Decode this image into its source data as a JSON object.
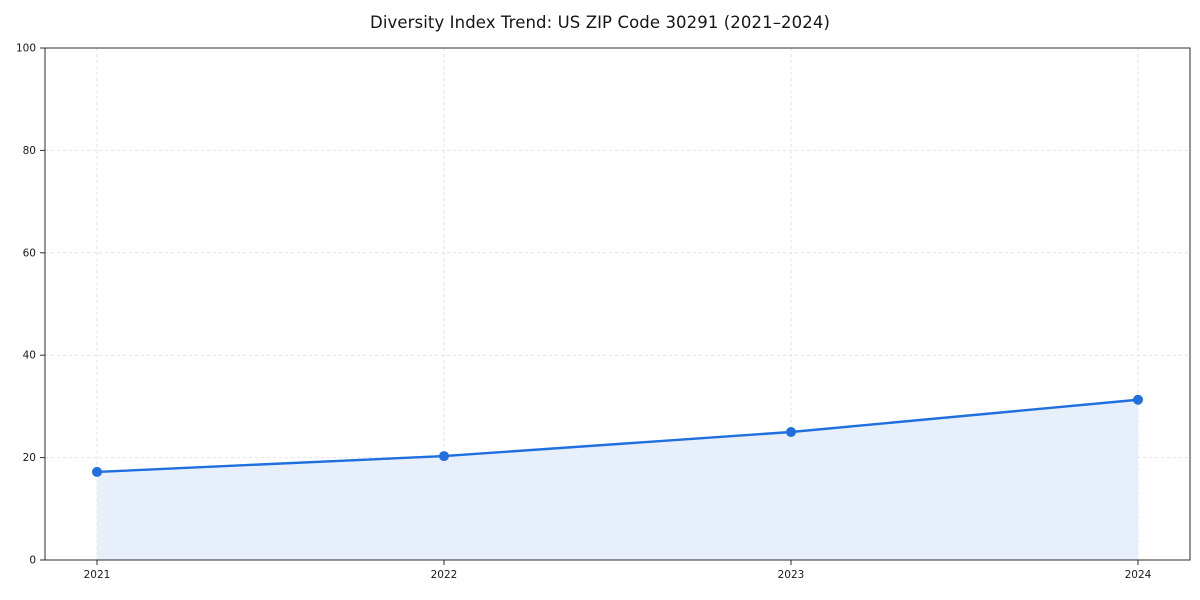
{
  "chart_data": {
    "type": "area",
    "title": "Diversity Index Trend: US ZIP Code 30291 (2021–2024)",
    "x": [
      "2021",
      "2022",
      "2023",
      "2024"
    ],
    "series": [
      {
        "name": "Diversity Index",
        "values": [
          17.2,
          20.3,
          25.0,
          31.3
        ]
      }
    ],
    "xlabel": "",
    "ylabel": "",
    "ylim": [
      0,
      100
    ],
    "yticks": [
      0,
      20,
      40,
      60,
      80,
      100
    ],
    "grid": "dashed",
    "legend": "none",
    "line_color": "#1f6fde",
    "fill_color": "#e4edfb",
    "marker_color": "#1f6fde",
    "axis_color": "#2b2b2b",
    "grid_color": "#e2e2e2",
    "tick_label_color": "#1a1a1a"
  }
}
